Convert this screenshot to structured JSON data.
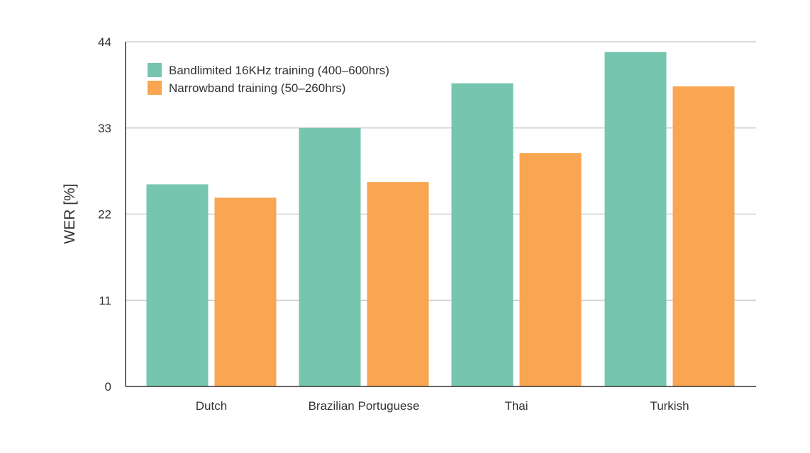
{
  "chart_data": {
    "type": "bar",
    "categories": [
      "Dutch",
      "Brazilian Portuguese",
      "Thai",
      "Turkish"
    ],
    "series": [
      {
        "name": "Bandlimited 16KHz training (400–600hrs)",
        "values": [
          25.8,
          33.0,
          38.7,
          42.7
        ],
        "color": "#76c5ae"
      },
      {
        "name": "Narrowband training (50–260hrs)",
        "values": [
          24.1,
          26.1,
          29.8,
          38.3
        ],
        "color": "#f9a552"
      }
    ],
    "title": "",
    "xlabel": "",
    "ylabel": "WER [%]",
    "ylim": [
      0,
      44
    ],
    "yticks": [
      0,
      11,
      22,
      33,
      44
    ],
    "grid": true,
    "legend_position": "top-left"
  }
}
